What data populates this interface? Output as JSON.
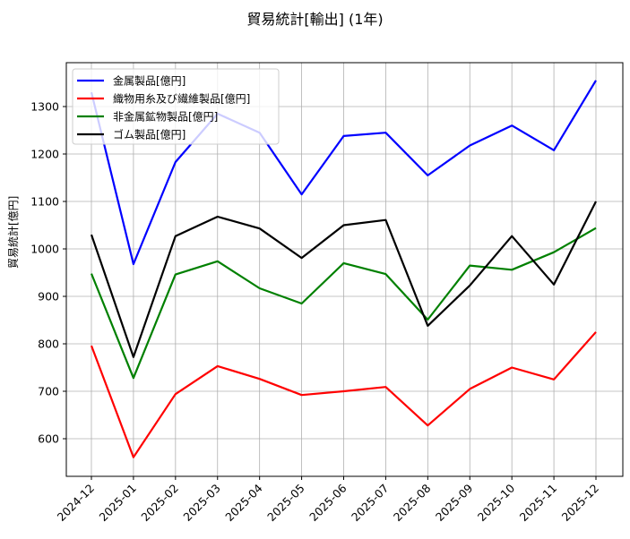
{
  "chart_data": {
    "type": "line",
    "title": "貿易統計[輸出] (1年)",
    "xlabel": "",
    "ylabel": "貿易統計[億円]",
    "ylim": [
      520,
      1390
    ],
    "yticks": [
      600,
      700,
      800,
      900,
      1000,
      1100,
      1200,
      1300
    ],
    "grid": true,
    "legend_position": "upper left",
    "categories": [
      "2024-12",
      "2025-01",
      "2025-02",
      "2025-03",
      "2025-04",
      "2025-05",
      "2025-06",
      "2025-07",
      "2025-08",
      "2025-09",
      "2025-10",
      "2025-11",
      "2025-12"
    ],
    "series": [
      {
        "name": "金属製品[億円]",
        "color": "#0000ff",
        "values": [
          1330,
          968,
          1183,
          1285,
          1245,
          1115,
          1238,
          1245,
          1155,
          1218,
          1260,
          1208,
          1355
        ]
      },
      {
        "name": "織物用糸及び繊維製品[億円]",
        "color": "#ff0000",
        "values": [
          796,
          561,
          694,
          753,
          726,
          692,
          700,
          709,
          628,
          705,
          750,
          725,
          825
        ]
      },
      {
        "name": "非金属鉱物製品[億円]",
        "color": "#008000",
        "values": [
          948,
          728,
          946,
          974,
          917,
          885,
          970,
          947,
          851,
          965,
          956,
          993,
          1044
        ]
      },
      {
        "name": "ゴム製品[億円]",
        "color": "#000000",
        "values": [
          1030,
          772,
          1027,
          1068,
          1043,
          981,
          1050,
          1061,
          838,
          923,
          1027,
          925,
          1100
        ]
      }
    ]
  }
}
